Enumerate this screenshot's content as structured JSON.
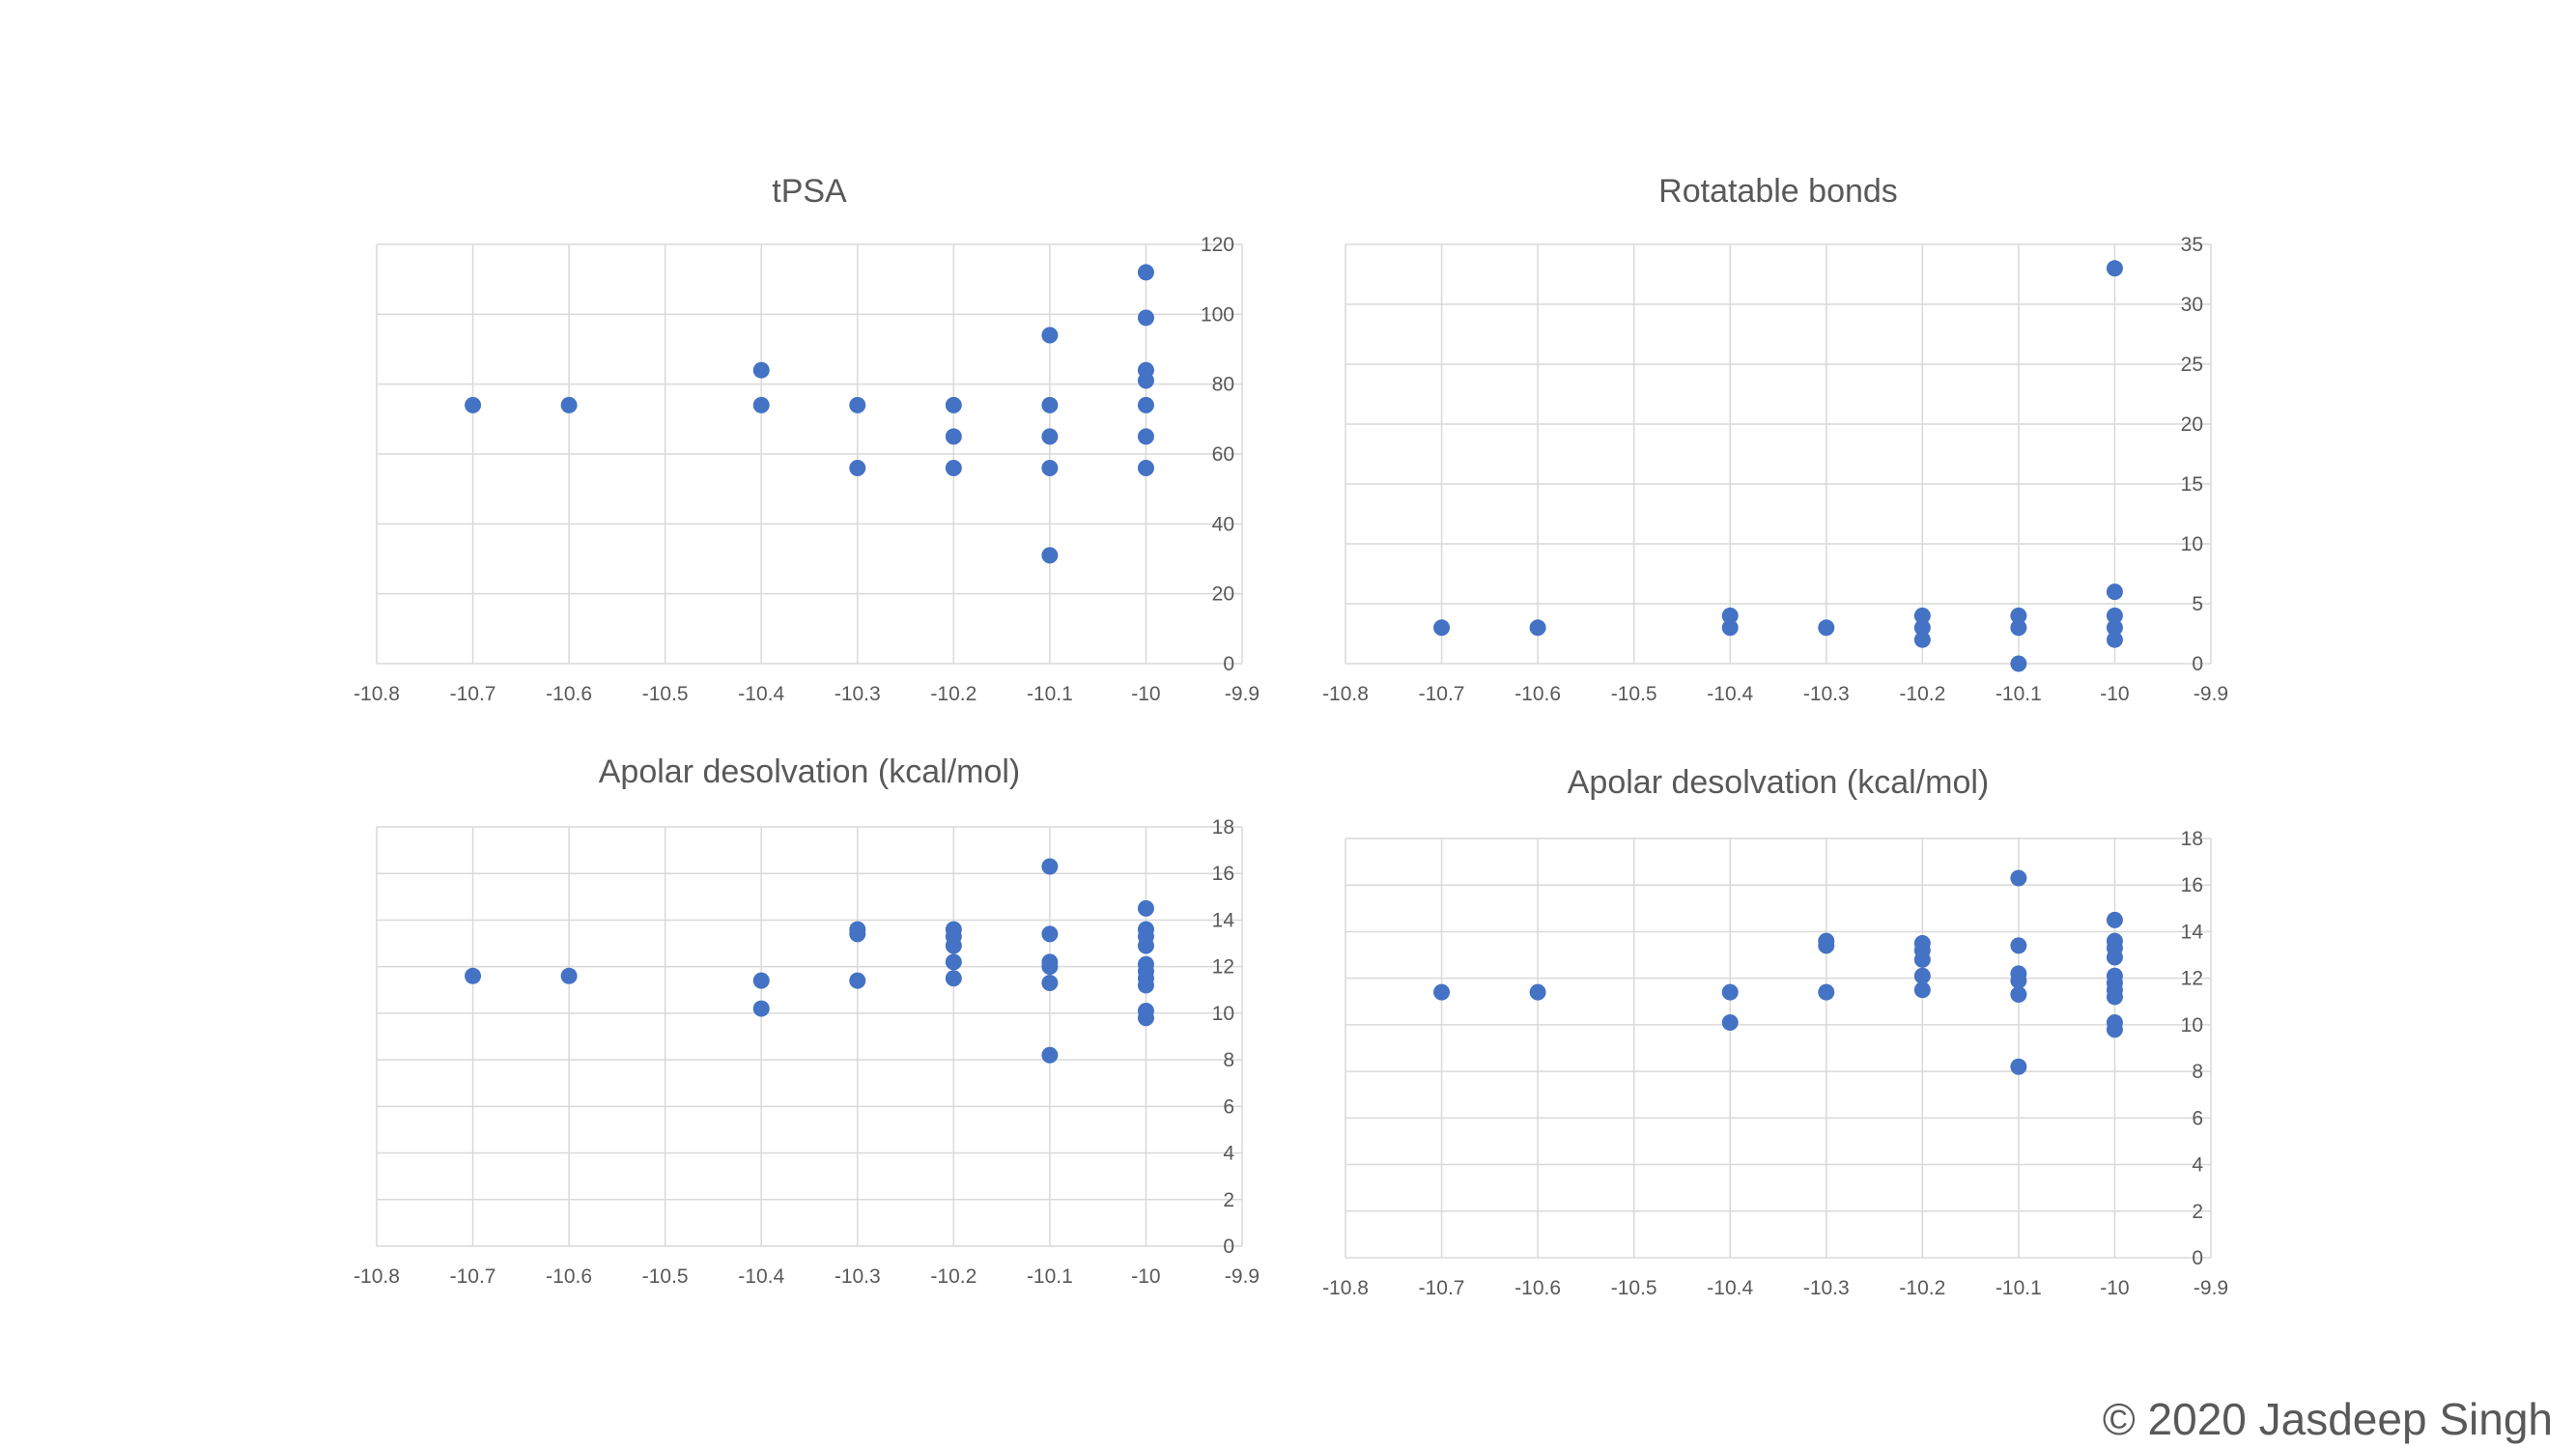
{
  "copyright": "© 2020 Jasdeep Singh",
  "colors": {
    "marker": "#4472C4",
    "grid": "#D9D9D9",
    "text": "#595959"
  },
  "chart_data": [
    {
      "type": "scatter",
      "title": "tPSA",
      "xlabel": "",
      "ylabel": "",
      "xlim": [
        -10.8,
        -9.9
      ],
      "ylim": [
        0,
        120
      ],
      "x_ticks": [
        "-10.8",
        "-10.7",
        "-10.6",
        "-10.5",
        "-10.4",
        "-10.3",
        "-10.2",
        "-10.1",
        "-10",
        "-9.9"
      ],
      "y_ticks": [
        "0",
        "20",
        "40",
        "60",
        "80",
        "100",
        "120"
      ],
      "grid": true,
      "legend": "none",
      "points": [
        [
          -10.7,
          74
        ],
        [
          -10.6,
          74
        ],
        [
          -10.4,
          84
        ],
        [
          -10.4,
          74
        ],
        [
          -10.3,
          74
        ],
        [
          -10.3,
          56
        ],
        [
          -10.2,
          74
        ],
        [
          -10.2,
          65
        ],
        [
          -10.2,
          56
        ],
        [
          -10.1,
          94
        ],
        [
          -10.1,
          74
        ],
        [
          -10.1,
          65
        ],
        [
          -10.1,
          56
        ],
        [
          -10.1,
          31
        ],
        [
          -10,
          112
        ],
        [
          -10,
          99
        ],
        [
          -10,
          84
        ],
        [
          -10,
          81
        ],
        [
          -10,
          74
        ],
        [
          -10,
          65
        ],
        [
          -10,
          56
        ]
      ]
    },
    {
      "type": "scatter",
      "title": "Rotatable bonds",
      "xlabel": "",
      "ylabel": "",
      "xlim": [
        -10.8,
        -9.9
      ],
      "ylim": [
        0,
        35
      ],
      "x_ticks": [
        "-10.8",
        "-10.7",
        "-10.6",
        "-10.5",
        "-10.4",
        "-10.3",
        "-10.2",
        "-10.1",
        "-10",
        "-9.9"
      ],
      "y_ticks": [
        "0",
        "5",
        "10",
        "15",
        "20",
        "25",
        "30",
        "35"
      ],
      "grid": true,
      "legend": "none",
      "points": [
        [
          -10.7,
          3
        ],
        [
          -10.6,
          3
        ],
        [
          -10.4,
          4
        ],
        [
          -10.4,
          3
        ],
        [
          -10.3,
          3
        ],
        [
          -10.2,
          4
        ],
        [
          -10.2,
          3
        ],
        [
          -10.2,
          2
        ],
        [
          -10.1,
          4
        ],
        [
          -10.1,
          3
        ],
        [
          -10.1,
          0
        ],
        [
          -10,
          33
        ],
        [
          -10,
          6
        ],
        [
          -10,
          4
        ],
        [
          -10,
          3
        ],
        [
          -10,
          2
        ]
      ]
    },
    {
      "type": "scatter",
      "title": "Apolar desolvation (kcal/mol)",
      "xlabel": "",
      "ylabel": "",
      "xlim": [
        -10.8,
        -9.9
      ],
      "ylim": [
        0,
        18
      ],
      "x_ticks": [
        "-10.8",
        "-10.7",
        "-10.6",
        "-10.5",
        "-10.4",
        "-10.3",
        "-10.2",
        "-10.1",
        "-10",
        "-9.9"
      ],
      "y_ticks": [
        "0",
        "2",
        "4",
        "6",
        "8",
        "10",
        "12",
        "14",
        "16",
        "18"
      ],
      "grid": true,
      "legend": "none",
      "points": [
        [
          -10.7,
          11.6
        ],
        [
          -10.6,
          11.6
        ],
        [
          -10.4,
          11.4
        ],
        [
          -10.4,
          10.2
        ],
        [
          -10.3,
          13.6
        ],
        [
          -10.3,
          13.4
        ],
        [
          -10.3,
          11.4
        ],
        [
          -10.2,
          13.6
        ],
        [
          -10.2,
          13.3
        ],
        [
          -10.2,
          12.9
        ],
        [
          -10.2,
          12.2
        ],
        [
          -10.2,
          11.5
        ],
        [
          -10.1,
          16.3
        ],
        [
          -10.1,
          13.4
        ],
        [
          -10.1,
          12.2
        ],
        [
          -10.1,
          12.0
        ],
        [
          -10.1,
          11.3
        ],
        [
          -10.1,
          8.2
        ],
        [
          -10,
          14.5
        ],
        [
          -10,
          13.6
        ],
        [
          -10,
          13.3
        ],
        [
          -10,
          12.9
        ],
        [
          -10,
          12.1
        ],
        [
          -10,
          11.8
        ],
        [
          -10,
          11.5
        ],
        [
          -10,
          11.2
        ],
        [
          -10,
          10.1
        ],
        [
          -10,
          9.8
        ]
      ]
    },
    {
      "type": "scatter",
      "title": "Apolar desolvation (kcal/mol)",
      "xlabel": "",
      "ylabel": "",
      "xlim": [
        -10.8,
        -9.9
      ],
      "ylim": [
        0,
        18
      ],
      "x_ticks": [
        "-10.8",
        "-10.7",
        "-10.6",
        "-10.5",
        "-10.4",
        "-10.3",
        "-10.2",
        "-10.1",
        "-10",
        "-9.9"
      ],
      "y_ticks": [
        "0",
        "2",
        "4",
        "6",
        "8",
        "10",
        "12",
        "14",
        "16",
        "18"
      ],
      "grid": true,
      "legend": "none",
      "points": [
        [
          -10.7,
          11.4
        ],
        [
          -10.6,
          11.4
        ],
        [
          -10.4,
          11.4
        ],
        [
          -10.4,
          10.1
        ],
        [
          -10.3,
          13.6
        ],
        [
          -10.3,
          13.4
        ],
        [
          -10.3,
          11.4
        ],
        [
          -10.2,
          13.5
        ],
        [
          -10.2,
          13.2
        ],
        [
          -10.2,
          12.8
        ],
        [
          -10.2,
          12.1
        ],
        [
          -10.2,
          11.5
        ],
        [
          -10.1,
          16.3
        ],
        [
          -10.1,
          13.4
        ],
        [
          -10.1,
          12.2
        ],
        [
          -10.1,
          11.9
        ],
        [
          -10.1,
          11.3
        ],
        [
          -10.1,
          8.2
        ],
        [
          -10,
          14.5
        ],
        [
          -10,
          13.6
        ],
        [
          -10,
          13.3
        ],
        [
          -10,
          12.9
        ],
        [
          -10,
          12.1
        ],
        [
          -10,
          11.8
        ],
        [
          -10,
          11.5
        ],
        [
          -10,
          11.2
        ],
        [
          -10,
          10.1
        ],
        [
          -10,
          9.8
        ]
      ]
    }
  ]
}
